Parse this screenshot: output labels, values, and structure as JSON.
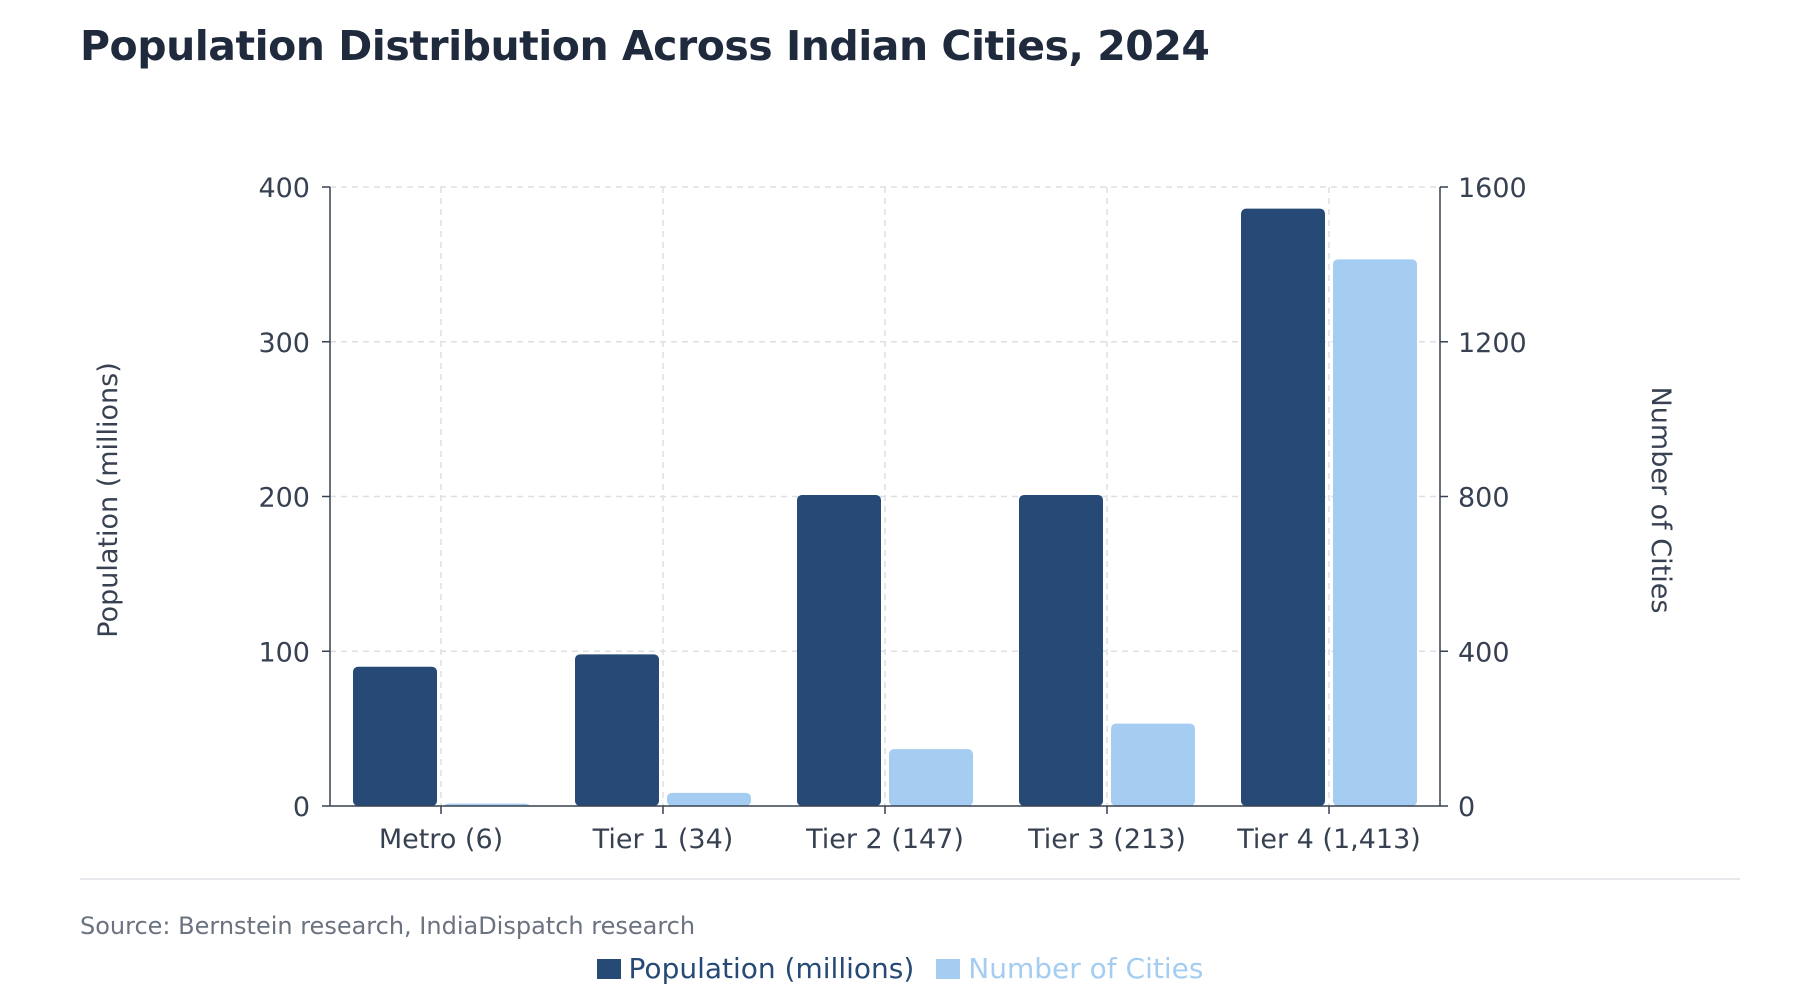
{
  "chart_data": {
    "type": "bar",
    "title": "Population Distribution Across Indian Cities, 2024",
    "source": "Source: Bernstein research, IndiaDispatch research",
    "categories": [
      "Metro (6)",
      "Tier 1 (34)",
      "Tier 2 (147)",
      "Tier 3 (213)",
      "Tier 4 (1,413)"
    ],
    "series": [
      {
        "name": "Population (millions)",
        "axis": "left",
        "color": "#264a75",
        "values": [
          90,
          98,
          201,
          201,
          386
        ]
      },
      {
        "name": "Number of Cities",
        "axis": "right",
        "color": "#a4cdf1",
        "values": [
          6,
          34,
          147,
          213,
          1413
        ]
      }
    ],
    "ylabel": "Population (millions)",
    "y2label": "Number of Cities",
    "ylim": [
      0,
      400
    ],
    "y2lim": [
      0,
      1600
    ],
    "yticks": [
      "0",
      "100",
      "200",
      "300",
      "400"
    ],
    "y2ticks": [
      "0",
      "400",
      "800",
      "1200",
      "1600"
    ],
    "grid": true,
    "legend_position": "bottom-center"
  }
}
